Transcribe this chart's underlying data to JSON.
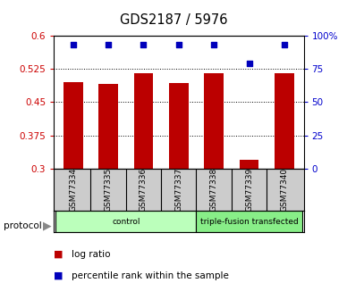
{
  "title": "GDS2187 / 5976",
  "samples": [
    "GSM77334",
    "GSM77335",
    "GSM77336",
    "GSM77337",
    "GSM77338",
    "GSM77339",
    "GSM77340"
  ],
  "log_ratio": [
    0.495,
    0.49,
    0.515,
    0.493,
    0.515,
    0.32,
    0.515
  ],
  "percentile_rank": [
    93,
    93,
    93,
    93,
    93,
    79,
    93
  ],
  "ylim_left": [
    0.3,
    0.6
  ],
  "yticks_left": [
    0.3,
    0.375,
    0.45,
    0.525,
    0.6
  ],
  "ytick_labels_left": [
    "0.3",
    "0.375",
    "0.45",
    "0.525",
    "0.6"
  ],
  "ylim_right": [
    0,
    100
  ],
  "yticks_right": [
    0,
    25,
    50,
    75,
    100
  ],
  "ytick_labels_right": [
    "0",
    "25",
    "50",
    "75",
    "100%"
  ],
  "bar_color": "#bb0000",
  "dot_color": "#0000bb",
  "bar_width": 0.55,
  "groups": [
    {
      "label": "control",
      "indices": [
        0,
        1,
        2,
        3
      ],
      "color": "#bbffbb"
    },
    {
      "label": "triple-fusion transfected",
      "indices": [
        4,
        5,
        6
      ],
      "color": "#88ee88"
    }
  ],
  "protocol_label": "protocol",
  "legend_items": [
    {
      "label": "log ratio",
      "color": "#bb0000"
    },
    {
      "label": "percentile rank within the sample",
      "color": "#0000bb"
    }
  ],
  "grid_color": "black",
  "tick_label_color_left": "#cc0000",
  "tick_label_color_right": "#0000cc",
  "sample_bg_color": "#cccccc",
  "plot_area_bg": "#ffffff"
}
